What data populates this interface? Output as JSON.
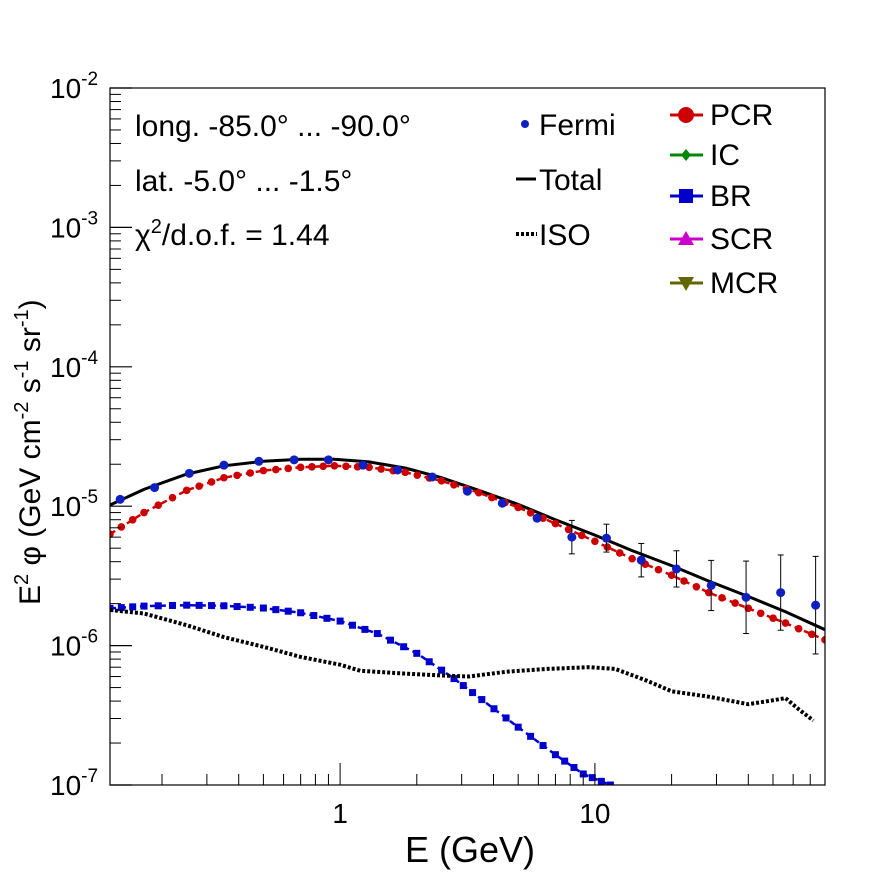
{
  "chart_data": {
    "type": "line",
    "xscale": "log",
    "yscale": "log",
    "xlim": [
      0.125,
      80
    ],
    "ylim": [
      1e-07,
      0.01
    ],
    "xlabel": "E (GeV)",
    "ylabel": {
      "prefix": "E",
      "exp1": "2",
      "mid": " φ (GeV cm",
      "exp2": "-2",
      "mid2": " s",
      "exp3": "-1",
      "mid3": " sr",
      "exp4": "-1",
      "suffix": ")"
    },
    "x_tick_labels": [
      {
        "value": 1,
        "label": "1"
      },
      {
        "value": 10,
        "label": "10"
      }
    ],
    "y_tick_labels": [
      {
        "value": 1e-07,
        "base": "10",
        "exp": "-7"
      },
      {
        "value": 1e-06,
        "base": "10",
        "exp": "-6"
      },
      {
        "value": 1e-05,
        "base": "10",
        "exp": "-5"
      },
      {
        "value": 0.0001,
        "base": "10",
        "exp": "-4"
      },
      {
        "value": 0.001,
        "base": "10",
        "exp": "-3"
      },
      {
        "value": 0.01,
        "base": "10",
        "exp": "-2"
      }
    ],
    "annotations": {
      "longitude": "long. -85.0° ... -90.0°",
      "latitude": "lat. -5.0° ... -1.5°",
      "chi_prefix": "χ",
      "chi_exp": "2",
      "chi_suffix": "/d.o.f. = 1.44"
    },
    "legend_left": [
      {
        "name": "Fermi",
        "marker": "dot",
        "color": "#1020c0"
      },
      {
        "name": "Total",
        "marker": "line",
        "color": "#000000"
      },
      {
        "name": "ISO",
        "marker": "dotted",
        "color": "#000000"
      }
    ],
    "legend_right": [
      {
        "name": "PCR",
        "marker": "circle",
        "color": "#cc0000"
      },
      {
        "name": "IC",
        "marker": "diamond",
        "color": "#008800"
      },
      {
        "name": "BR",
        "marker": "square",
        "color": "#0000cc"
      },
      {
        "name": "SCR",
        "marker": "triangle-up",
        "color": "#cc00cc"
      },
      {
        "name": "MCR",
        "marker": "triangle-down",
        "color": "#666600"
      }
    ],
    "fermi": {
      "color": "#1020c0",
      "points": [
        {
          "x": 0.137,
          "y": 1.12e-05,
          "err": 0
        },
        {
          "x": 0.187,
          "y": 1.36e-05,
          "err": 0
        },
        {
          "x": 0.256,
          "y": 1.72e-05,
          "err": 0
        },
        {
          "x": 0.35,
          "y": 1.97e-05,
          "err": 0
        },
        {
          "x": 0.48,
          "y": 2.1e-05,
          "err": 0
        },
        {
          "x": 0.66,
          "y": 2.15e-05,
          "err": 0
        },
        {
          "x": 0.9,
          "y": 2.15e-05,
          "err": 0
        },
        {
          "x": 1.23,
          "y": 1.97e-05,
          "err": 0
        },
        {
          "x": 1.68,
          "y": 1.82e-05,
          "err": 0
        },
        {
          "x": 2.3,
          "y": 1.62e-05,
          "err": 0
        },
        {
          "x": 3.16,
          "y": 1.28e-05,
          "err": 0
        },
        {
          "x": 4.33,
          "y": 1.05e-05,
          "err": 0
        },
        {
          "x": 5.93,
          "y": 8.2e-06,
          "err": 0
        },
        {
          "x": 8.12,
          "y": 6e-06,
          "err": 0.12
        },
        {
          "x": 11.1,
          "y": 5.9e-06,
          "err": 0.1
        },
        {
          "x": 15.2,
          "y": 4.1e-06,
          "err": 0.12
        },
        {
          "x": 20.9,
          "y": 3.55e-06,
          "err": 0.13
        },
        {
          "x": 28.6,
          "y": 2.7e-06,
          "err": 0.18
        },
        {
          "x": 39.2,
          "y": 2.22e-06,
          "err": 0.26
        },
        {
          "x": 53.6,
          "y": 2.4e-06,
          "err": 0.27
        },
        {
          "x": 73.5,
          "y": 1.95e-06,
          "err": 0.35
        }
      ]
    },
    "series": [
      {
        "name": "Total",
        "style": "solid",
        "color": "#000000",
        "x": [
          0.125,
          0.17,
          0.25,
          0.35,
          0.5,
          0.7,
          0.95,
          1.3,
          1.8,
          2.5,
          3.5,
          5,
          7,
          10,
          14,
          20,
          28,
          40,
          56,
          80
        ],
        "y": [
          1.02e-05,
          1.32e-05,
          1.7e-05,
          1.95e-05,
          2.1e-05,
          2.17e-05,
          2.17e-05,
          2.08e-05,
          1.88e-05,
          1.6e-05,
          1.3e-05,
          1.03e-05,
          8e-06,
          6.2e-06,
          4.8e-06,
          3.75e-06,
          2.9e-06,
          2.25e-06,
          1.75e-06,
          1.3e-06
        ]
      },
      {
        "name": "PCR",
        "style": "dashed-markers",
        "color": "#cc0000",
        "x": [
          0.125,
          0.17,
          0.25,
          0.35,
          0.5,
          0.7,
          0.95,
          1.3,
          1.8,
          2.5,
          3.5,
          5,
          7,
          10,
          14,
          20,
          28,
          40,
          56,
          80
        ],
        "y": [
          6.3e-06,
          9e-06,
          1.3e-05,
          1.6e-05,
          1.8e-05,
          1.9e-05,
          1.95e-05,
          1.9e-05,
          1.75e-05,
          1.52e-05,
          1.25e-05,
          9.8e-06,
          7.5e-06,
          5.6e-06,
          4.2e-06,
          3.2e-06,
          2.4e-06,
          1.85e-06,
          1.45e-06,
          1.1e-06
        ]
      },
      {
        "name": "BR",
        "style": "dashed-markers",
        "color": "#0000cc",
        "x": [
          0.125,
          0.17,
          0.25,
          0.35,
          0.5,
          0.7,
          1.0,
          1.4,
          2.0,
          2.8,
          3.6,
          5,
          7,
          9,
          11.5
        ],
        "y": [
          1.85e-06,
          1.92e-06,
          1.95e-06,
          1.93e-06,
          1.86e-06,
          1.72e-06,
          1.5e-06,
          1.22e-06,
          8.8e-07,
          5.8e-07,
          4.1e-07,
          2.6e-07,
          1.65e-07,
          1.2e-07,
          1e-07
        ]
      },
      {
        "name": "ISO",
        "style": "dotted",
        "color": "#000000",
        "x": [
          0.125,
          0.17,
          0.25,
          0.35,
          0.5,
          0.7,
          1.0,
          1.2,
          1.8,
          2.5,
          3.2,
          4.5,
          6.5,
          9.5,
          12,
          16,
          20,
          28,
          40,
          50,
          56,
          63,
          72
        ],
        "y": [
          1.8e-06,
          1.7e-06,
          1.4e-06,
          1.15e-06,
          9.8e-07,
          8.3e-07,
          7.3e-07,
          6.6e-07,
          6.3e-07,
          6.1e-07,
          6e-07,
          6.5e-07,
          6.8e-07,
          7e-07,
          6.8e-07,
          5.6e-07,
          4.7e-07,
          4.3e-07,
          3.8e-07,
          4.05e-07,
          4.2e-07,
          3.5e-07,
          2.9e-07
        ]
      }
    ]
  }
}
